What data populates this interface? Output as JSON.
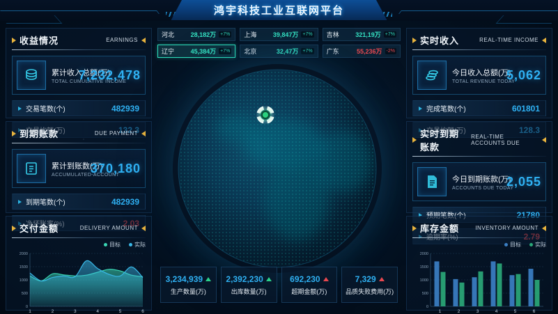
{
  "header": {
    "title": "鸿宇科技工业互联网平台"
  },
  "colors": {
    "accent_blue": "#2fb1f3",
    "accent_teal": "#35e2c2",
    "alert_red": "#e8484f",
    "accent_yellow": "#e8b33d"
  },
  "left": {
    "earnings": {
      "title": "收益情况",
      "subtitle": "EARNINGS",
      "main": {
        "label": "累计收入总额(万)",
        "sublabel": "TOTAL CUMULATIVE INCOME",
        "value": "7,232,478"
      },
      "rows": [
        {
          "label": "交易笔数(个)",
          "value": "482939"
        },
        {
          "label": "交易均额(万)",
          "value": "132.3"
        }
      ]
    },
    "due": {
      "title": "到期账款",
      "subtitle": "DUE PAYMENT",
      "main": {
        "label": "累计到账数(万)",
        "sublabel": "ACCUMULATED-ACCOUNT",
        "value": "370,180"
      },
      "rows": [
        {
          "label": "到期笔数(个)",
          "value": "482939"
        },
        {
          "label": "净坏账率(%)",
          "value": "2.03"
        }
      ]
    },
    "delivery": {
      "title": "交付金额",
      "subtitle": "DELIVERY AMOUNT"
    }
  },
  "right": {
    "income": {
      "title": "实时收入",
      "subtitle": "REAL-TIME INCOME",
      "main": {
        "label": "今日收入总额(万)",
        "sublabel": "TOTAL REVENUE TODAY",
        "value": "5,062"
      },
      "rows": [
        {
          "label": "完成笔数(个)",
          "value": "601801"
        },
        {
          "label": "交易均额(万)",
          "value": "128.3"
        }
      ]
    },
    "due": {
      "title": "实时到期账款",
      "subtitle": "REAL-TIME ACCOUNTS DUE",
      "main": {
        "label": "今日到期账款(万)",
        "sublabel": "ACCOUNTS DUE TODAY",
        "value": "2,055"
      },
      "rows": [
        {
          "label": "预期笔数(个)",
          "value": "21780"
        },
        {
          "label": "逾期率(%)",
          "value": "2.79"
        }
      ]
    },
    "inventory": {
      "title": "库存金额",
      "subtitle": "INVENTORY AMOUNT"
    }
  },
  "center": {
    "provinces": [
      {
        "name": "河北",
        "value": "28,182万",
        "delta": "+7%"
      },
      {
        "name": "上海",
        "value": "39,847万",
        "delta": "+7%"
      },
      {
        "name": "吉林",
        "value": "321,19万",
        "delta": "+7%"
      },
      {
        "name": "辽宁",
        "value": "45,384万",
        "delta": "+7%"
      },
      {
        "name": "北京",
        "value": "32,47万",
        "delta": "+7%"
      },
      {
        "name": "广东",
        "value": "55,236万",
        "delta": "-2%"
      }
    ],
    "bottom_stats": [
      {
        "value": "3,234,939",
        "label": "生产数量(万)"
      },
      {
        "value": "2,392,230",
        "label": "出库数量(万)"
      },
      {
        "value": "692,230",
        "label": "超期金额(万)"
      },
      {
        "value": "7,329",
        "label": "品质失败费用(万)"
      }
    ]
  },
  "chart_data": [
    {
      "id": "delivery",
      "type": "area",
      "title": "交付金额",
      "categories": [
        "1",
        "2",
        "3",
        "4",
        "5",
        "6"
      ],
      "x_step": 0.5,
      "series": [
        {
          "name": "目标",
          "color": "#3ad6b4",
          "values": [
            1150,
            960,
            1230,
            1190,
            1150,
            1180,
            1290,
            1400,
            1340,
            1180,
            1120
          ]
        },
        {
          "name": "实际",
          "color": "#39b7e6",
          "values": [
            1260,
            960,
            1090,
            1150,
            1120,
            1720,
            1430,
            1210,
            1150,
            1490,
            1090
          ]
        }
      ],
      "ylim": [
        0,
        2000
      ],
      "yticks": [
        0,
        500,
        1000,
        1500,
        2000
      ],
      "legend_position": "top-right",
      "grid": true
    },
    {
      "id": "inventory",
      "type": "bar",
      "title": "库存金额",
      "categories": [
        "1",
        "2",
        "3",
        "4",
        "5",
        "6"
      ],
      "series": [
        {
          "name": "目标",
          "color": "#3b7fc4",
          "values": [
            1700,
            1030,
            1100,
            1700,
            1180,
            1420
          ]
        },
        {
          "name": "实际",
          "color": "#2aa878",
          "values": [
            1300,
            900,
            1320,
            1620,
            1220,
            1000
          ]
        }
      ],
      "ylim": [
        0,
        2000
      ],
      "yticks": [
        0,
        500,
        1000,
        1500,
        2000
      ],
      "legend_position": "top-right",
      "grid": true
    }
  ]
}
